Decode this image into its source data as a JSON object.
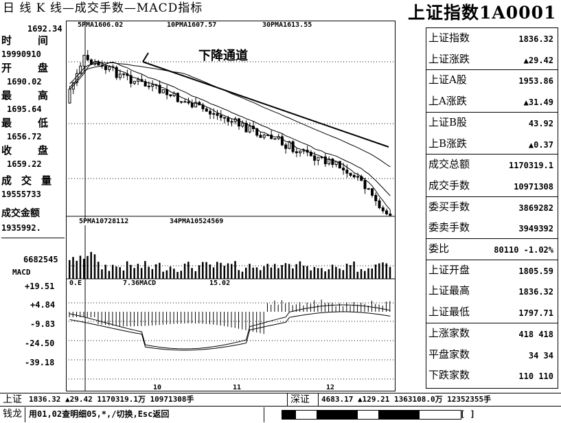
{
  "title": {
    "left": "日 线 K 线—成交手数—MACD指标",
    "right": "上证指数1A0001"
  },
  "left_panel": {
    "top_value": "1692.34",
    "rows": [
      {
        "label": "时间",
        "value": "19990910"
      },
      {
        "label": "开盘",
        "value": "1690.02"
      },
      {
        "label": "最高",
        "value": "1695.64"
      },
      {
        "label": "最低",
        "value": "1656.72"
      },
      {
        "label": "收盘",
        "value": "1659.22"
      },
      {
        "label": "成交量",
        "value": "19555733"
      },
      {
        "label": "成交金额",
        "value": "1935992."
      }
    ],
    "vol_axis": "6682545",
    "macd_title": "MACD",
    "macd_ticks": [
      "+19.51",
      "+4.84",
      "-9.83",
      "-24.50",
      "-39.18"
    ]
  },
  "chart": {
    "ma_legend": [
      "5PMA1606.02",
      "10PMA1607.57",
      "30PMA1613.55"
    ],
    "annotation": "下降通道",
    "vol_legend": [
      "5PMA10728112",
      "34PMA10524569"
    ],
    "macd_legend": [
      "0.E",
      "7.36MACD",
      "15.02"
    ],
    "month_labels": [
      "10",
      "11",
      "12"
    ]
  },
  "right_panel": {
    "rows": [
      {
        "label": "上证指数",
        "value": "1836.32"
      },
      {
        "label": "上证涨跌",
        "value": "▲29.42"
      },
      {
        "label": "上证A股",
        "value": "1953.86"
      },
      {
        "label": "上A涨跌",
        "value": "▲31.49"
      },
      {
        "label": "上证B股",
        "value": "43.92"
      },
      {
        "label": "上B涨跌",
        "value": "▲0.37"
      },
      {
        "label": "成交总额",
        "value": "1170319.1"
      },
      {
        "label": "成交手数",
        "value": "10971308"
      },
      {
        "label": "委买手数",
        "value": "3869282"
      },
      {
        "label": "委卖手数",
        "value": "3949392"
      },
      {
        "label": "委比",
        "value": "80110 -1.02%"
      },
      {
        "label": "上证开盘",
        "value": "1805.59"
      },
      {
        "label": "上证最高",
        "value": "1836.32"
      },
      {
        "label": "上证最低",
        "value": "1797.71"
      },
      {
        "label": "上涨家数",
        "value": "418   418"
      },
      {
        "label": "平盘家数",
        "value": "34    34"
      },
      {
        "label": "下跌家数",
        "value": "110   110"
      }
    ]
  },
  "status": {
    "sh_label": "上证",
    "sh_text": "1836.32 ▲29.42 1170319.1万 10971308手",
    "sz_label": "深证",
    "sz_text": "4683.17 ▲129.21 1363108.0万 12352355手"
  },
  "help": {
    "app": "钱龙",
    "text": "用01,02查明细05,*,/切换,Esc返回",
    "bracket": "[          ]"
  }
}
